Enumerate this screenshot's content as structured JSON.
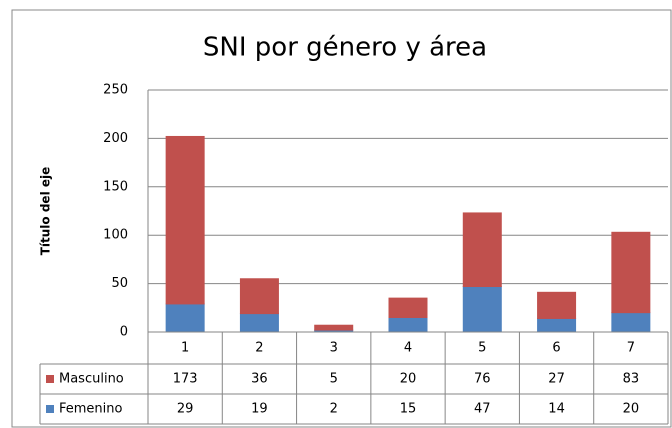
{
  "chart_data": {
    "type": "bar",
    "stacked": true,
    "title": "SNI por género y área",
    "ylabel": "Título del eje",
    "categories": [
      "1",
      "2",
      "3",
      "4",
      "5",
      "6",
      "7"
    ],
    "series": [
      {
        "name": "Masculino",
        "color": "#c0504d",
        "values": [
          173,
          36,
          5,
          20,
          76,
          27,
          83
        ]
      },
      {
        "name": "Femenino",
        "color": "#4f81bd",
        "values": [
          29,
          19,
          2,
          15,
          47,
          14,
          20
        ]
      }
    ],
    "ylim": [
      0,
      250
    ],
    "yticks": [
      0,
      50,
      100,
      150,
      200,
      250
    ],
    "grid": true,
    "data_table": true
  }
}
